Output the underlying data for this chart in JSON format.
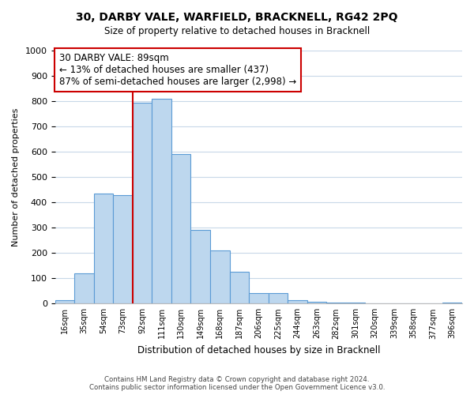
{
  "title": "30, DARBY VALE, WARFIELD, BRACKNELL, RG42 2PQ",
  "subtitle": "Size of property relative to detached houses in Bracknell",
  "xlabel": "Distribution of detached houses by size in Bracknell",
  "ylabel": "Number of detached properties",
  "bar_labels": [
    "16sqm",
    "35sqm",
    "54sqm",
    "73sqm",
    "92sqm",
    "111sqm",
    "130sqm",
    "149sqm",
    "168sqm",
    "187sqm",
    "206sqm",
    "225sqm",
    "244sqm",
    "263sqm",
    "282sqm",
    "301sqm",
    "320sqm",
    "339sqm",
    "358sqm",
    "377sqm",
    "396sqm"
  ],
  "bar_values": [
    15,
    120,
    435,
    430,
    795,
    810,
    590,
    290,
    210,
    125,
    40,
    40,
    12,
    8,
    5,
    5,
    0,
    0,
    0,
    0,
    5
  ],
  "bar_color": "#bdd7ee",
  "bar_edge_color": "#5b9bd5",
  "vline_x_index": 4,
  "vline_color": "#cc0000",
  "annotation_text": "30 DARBY VALE: 89sqm\n← 13% of detached houses are smaller (437)\n87% of semi-detached houses are larger (2,998) →",
  "annotation_box_color": "#ffffff",
  "annotation_box_edge": "#cc0000",
  "ylim": [
    0,
    1000
  ],
  "yticks": [
    0,
    100,
    200,
    300,
    400,
    500,
    600,
    700,
    800,
    900,
    1000
  ],
  "background_color": "#ffffff",
  "grid_color": "#c8d8e8",
  "footer_line1": "Contains HM Land Registry data © Crown copyright and database right 2024.",
  "footer_line2": "Contains public sector information licensed under the Open Government Licence v3.0."
}
